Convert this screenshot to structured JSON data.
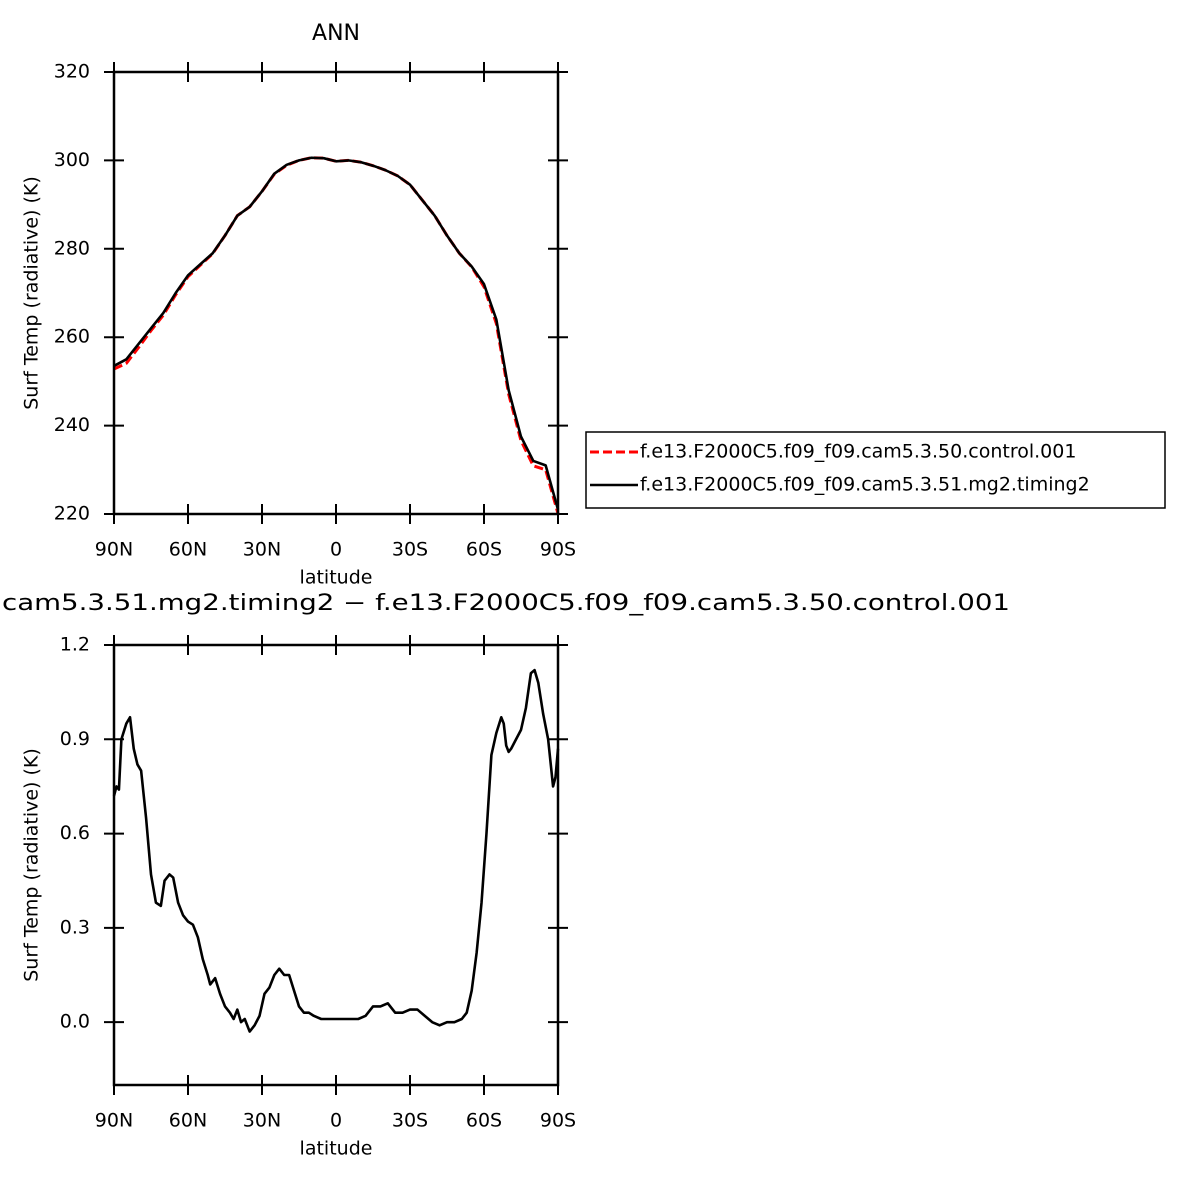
{
  "chart_data": [
    {
      "type": "line",
      "title": "ANN",
      "xlabel": "latitude",
      "ylabel": "Surf Temp (radiative) (K)",
      "x": [
        90,
        85,
        80,
        75,
        70,
        65,
        60,
        55,
        50,
        45,
        40,
        35,
        30,
        25,
        20,
        15,
        10,
        5,
        0,
        -5,
        -10,
        -15,
        -20,
        -25,
        -30,
        -35,
        -40,
        -45,
        -50,
        -55,
        -60,
        -65,
        -70,
        -75,
        -80,
        -85,
        -90
      ],
      "series": [
        {
          "name": "f.e13.F2000C5.f09_f09.cam5.3.50.control.001",
          "color": "#ff0000",
          "dashed": true,
          "values": [
            252.8,
            254.1,
            257.7,
            261.5,
            265.0,
            269.6,
            273.7,
            276.3,
            278.9,
            283,
            287.5,
            289.5,
            293,
            296.9,
            298.9,
            300,
            300.6,
            300.5,
            299.8,
            300,
            299.6,
            298.8,
            297.8,
            296.5,
            294.5,
            291,
            287.5,
            283,
            279,
            275.9,
            271.4,
            263.1,
            247.1,
            236.6,
            230.9,
            230.0,
            220.1
          ]
        },
        {
          "name": "f.e13.F2000C5.f09_f09.cam5.3.51.mg2.timing2",
          "color": "#000000",
          "dashed": false,
          "values": [
            253.5,
            255,
            258.5,
            262,
            265.5,
            270,
            274,
            276.5,
            279,
            283,
            287.5,
            289.5,
            293,
            297,
            299,
            300,
            300.6,
            300.5,
            299.8,
            300,
            299.6,
            298.8,
            297.8,
            296.5,
            294.5,
            291,
            287.5,
            283,
            279,
            276,
            272,
            264,
            248,
            237.5,
            232,
            231,
            221
          ]
        }
      ],
      "xlim": [
        90,
        -90
      ],
      "xticks": [
        {
          "value": 90,
          "label": "90N"
        },
        {
          "value": 60,
          "label": "60N"
        },
        {
          "value": 30,
          "label": "30N"
        },
        0,
        {
          "value": -30,
          "label": "30S"
        },
        {
          "value": -60,
          "label": "60S"
        },
        {
          "value": -90,
          "label": "90S"
        }
      ],
      "ylim": [
        220,
        320
      ],
      "yticks": [
        220,
        240,
        260,
        280,
        300,
        320
      ],
      "legend": "right"
    },
    {
      "type": "line",
      "title": "cam5.3.51.mg2.timing2 − f.e13.F2000C5.f09_f09.cam5.3.50.control.001",
      "xlabel": "latitude",
      "ylabel": "Surf Temp (radiative) (K)",
      "x": [
        90,
        89,
        88,
        87,
        85,
        83.5,
        82,
        80.5,
        79,
        77,
        75,
        73,
        71,
        69.5,
        67.5,
        66,
        64,
        62,
        60,
        58,
        56,
        54,
        52,
        51,
        49,
        47,
        45,
        43,
        41.5,
        40,
        38.5,
        37,
        35,
        33,
        31,
        29,
        27,
        25,
        23,
        21,
        19,
        17,
        15,
        13,
        11,
        9,
        6,
        3,
        0,
        -3,
        -6,
        -9,
        -12,
        -15,
        -18,
        -21,
        -24,
        -27,
        -30,
        -33,
        -36,
        -39,
        -42,
        -45,
        -48,
        -51,
        -53,
        -55,
        -57,
        -59,
        -61,
        -63,
        -65,
        -67,
        -68,
        -69,
        -70,
        -71,
        -73,
        -75,
        -77,
        -79,
        -80.5,
        -82,
        -84,
        -86,
        -88,
        -89,
        -90
      ],
      "series": [
        {
          "color": "#000000",
          "values": [
            0.72,
            0.75,
            0.74,
            0.9,
            0.95,
            0.97,
            0.87,
            0.82,
            0.8,
            0.65,
            0.47,
            0.38,
            0.37,
            0.45,
            0.47,
            0.46,
            0.38,
            0.34,
            0.32,
            0.31,
            0.27,
            0.2,
            0.15,
            0.12,
            0.14,
            0.09,
            0.05,
            0.03,
            0.01,
            0.04,
            0.0,
            0.01,
            -0.03,
            -0.01,
            0.02,
            0.09,
            0.11,
            0.15,
            0.17,
            0.15,
            0.15,
            0.1,
            0.05,
            0.03,
            0.03,
            0.02,
            0.01,
            0.01,
            0.01,
            0.01,
            0.01,
            0.01,
            0.02,
            0.05,
            0.05,
            0.06,
            0.03,
            0.03,
            0.04,
            0.04,
            0.02,
            0.0,
            -0.01,
            0.0,
            0.0,
            0.01,
            0.03,
            0.1,
            0.22,
            0.38,
            0.6,
            0.85,
            0.92,
            0.97,
            0.95,
            0.88,
            0.86,
            0.87,
            0.9,
            0.93,
            1.0,
            1.11,
            1.12,
            1.08,
            0.98,
            0.9,
            0.75,
            0.78,
            0.87
          ]
        }
      ],
      "xlim": [
        90,
        -90
      ],
      "xticks": [
        {
          "value": 90,
          "label": "90N"
        },
        {
          "value": 60,
          "label": "60N"
        },
        {
          "value": 30,
          "label": "30N"
        },
        0,
        {
          "value": -30,
          "label": "30S"
        },
        {
          "value": -60,
          "label": "60S"
        },
        {
          "value": -90,
          "label": "90S"
        }
      ],
      "ylim": [
        -0.2,
        1.2
      ],
      "yticks": [
        {
          "value": 0,
          "label": "0.0"
        },
        0.3,
        0.6,
        0.9,
        1.2
      ]
    }
  ]
}
